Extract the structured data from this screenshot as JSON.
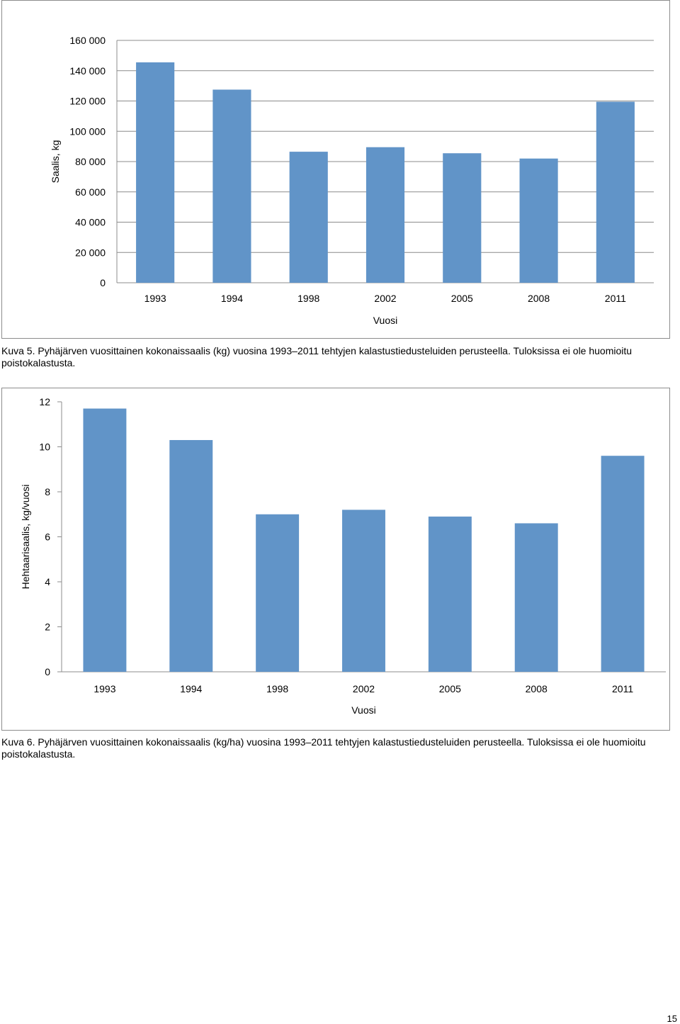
{
  "charts": [
    {
      "type": "bar",
      "categories": [
        "1993",
        "1994",
        "1998",
        "2002",
        "2005",
        "2008",
        "2011"
      ],
      "values": [
        145500,
        127500,
        86500,
        89500,
        85500,
        82000,
        119500
      ],
      "xlabel": "Vuosi",
      "ylabel": "Saalis, kg",
      "ylim": [
        0,
        160000
      ],
      "yticks": [
        "0",
        "20 000",
        "40 000",
        "60 000",
        "80 000",
        "100 000",
        "120 000",
        "140 000",
        "160 000"
      ],
      "bar_color": "#6194c8",
      "grid": true
    },
    {
      "type": "bar",
      "categories": [
        "1993",
        "1994",
        "1998",
        "2002",
        "2005",
        "2008",
        "2011"
      ],
      "values": [
        11.7,
        10.3,
        7.0,
        7.2,
        6.9,
        6.6,
        9.6
      ],
      "xlabel": "Vuosi",
      "ylabel": "Hehtaarisaalis, kg/vuosi",
      "ylim": [
        0,
        12
      ],
      "yticks": [
        "0",
        "2",
        "4",
        "6",
        "8",
        "10",
        "12"
      ],
      "bar_color": "#6194c8",
      "grid": false
    }
  ],
  "captions": {
    "fig5": "Kuva 5. Pyhäjärven vuosittainen kokonaissaalis (kg) vuosina 1993–2011 tehtyjen kalastustiedusteluiden perusteella. Tuloksissa ei ole huomioitu poistokalastusta.",
    "fig6": "Kuva 6. Pyhäjärven vuosittainen kokonaissaalis (kg/ha) vuosina 1993–2011 tehtyjen kalastustiedusteluiden perusteella. Tuloksissa ei ole huomioitu poistokalastusta."
  },
  "page_number": "15"
}
